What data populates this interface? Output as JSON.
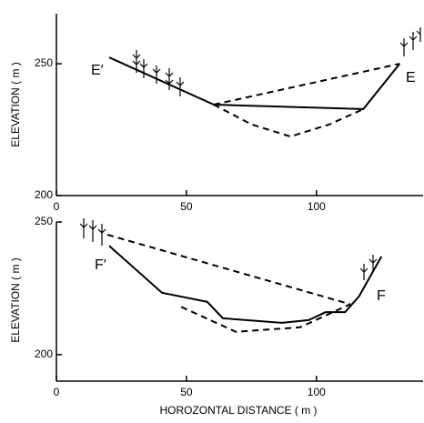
{
  "chart_data": [
    {
      "type": "line",
      "ylabel": "ELEVATION ( m )",
      "xlim": [
        0,
        141
      ],
      "xticks": [
        0,
        50,
        100
      ],
      "ylim": [
        200,
        269
      ],
      "yticks": [
        200,
        250
      ],
      "series": [
        {
          "color": "#000000",
          "dash": false,
          "x": [
            20.3,
            60.5,
            118,
            132
          ],
          "values": [
            252.4,
            234.5,
            232.8,
            250
          ]
        },
        {
          "color": "#000000",
          "dash": true,
          "x": [
            60.5,
            132
          ],
          "values": [
            234.5,
            250
          ]
        },
        {
          "color": "#000000",
          "dash": true,
          "x": [
            60.5,
            75,
            90,
            105,
            118
          ],
          "values": [
            234.5,
            227,
            222.4,
            227,
            232.8
          ]
        }
      ],
      "annotations": [
        "E′",
        "E"
      ]
    },
    {
      "type": "line",
      "ylabel": "ELEVATION ( m )",
      "xlabel": "HOROZONTAL DISTANCE ( m )",
      "xlim": [
        0,
        141
      ],
      "xticks": [
        0,
        50,
        100
      ],
      "ylim": [
        190,
        250
      ],
      "yticks": [
        200,
        250
      ],
      "series": [
        {
          "color": "#000000",
          "dash": false,
          "x": [
            20.3,
            40.6,
            58,
            64,
            86.7,
            97,
            103.5,
            111,
            116.4,
            125
          ],
          "values": [
            241,
            223.3,
            219.9,
            213.7,
            212,
            213,
            216,
            216,
            222,
            237
          ]
        },
        {
          "color": "#000000",
          "dash": true,
          "x": [
            19.6,
            113
          ],
          "values": [
            245.2,
            219
          ]
        },
        {
          "color": "#000000",
          "dash": true,
          "x": [
            48,
            69,
            93.7,
            113
          ],
          "values": [
            218,
            208.6,
            210.3,
            219
          ]
        }
      ],
      "annotations": [
        "F′",
        "F"
      ]
    }
  ]
}
